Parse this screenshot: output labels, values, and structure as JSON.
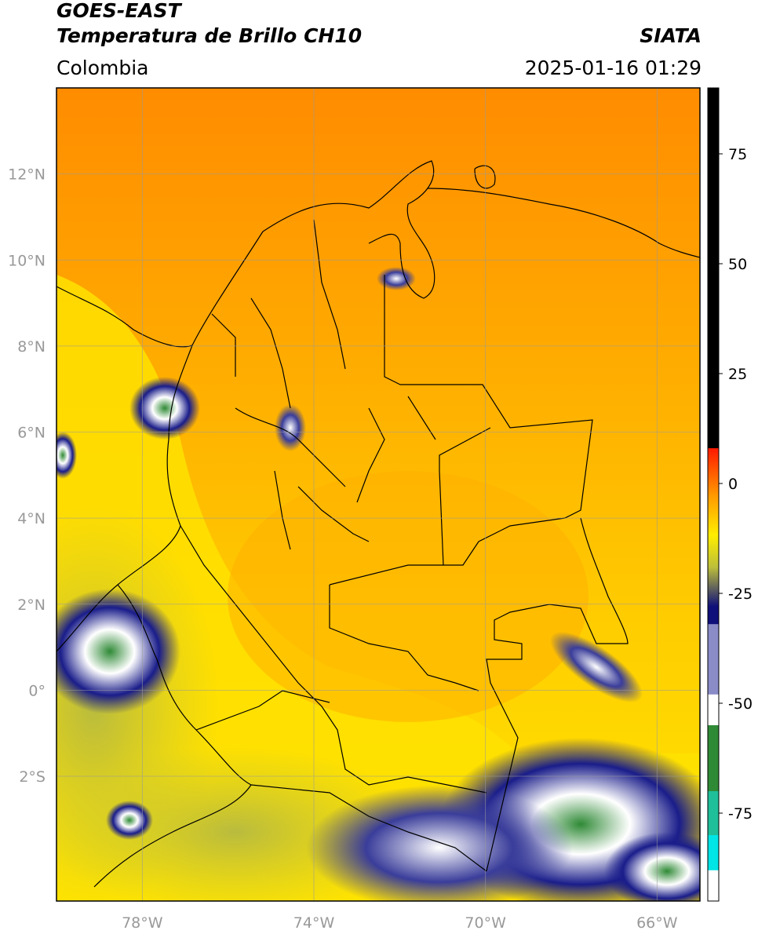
{
  "header": {
    "satellite": "GOES-EAST",
    "product": "Temperatura de Brillo CH10",
    "agency": "SIATA",
    "region": "Colombia",
    "datetime": "2025-01-16 01:29"
  },
  "map": {
    "lon_range": [
      -80,
      -65
    ],
    "lat_range": [
      -4.9,
      14
    ],
    "lat_ticks": [
      {
        "value": 12,
        "label": "12°N"
      },
      {
        "value": 10,
        "label": "10°N"
      },
      {
        "value": 8,
        "label": "8°N"
      },
      {
        "value": 6,
        "label": "6°N"
      },
      {
        "value": 4,
        "label": "4°N"
      },
      {
        "value": 2,
        "label": "2°N"
      },
      {
        "value": 0,
        "label": "0°"
      },
      {
        "value": -2,
        "label": "2°S"
      }
    ],
    "lon_ticks": [
      {
        "value": -78,
        "label": "78°W"
      },
      {
        "value": -74,
        "label": "74°W"
      },
      {
        "value": -70,
        "label": "70°W"
      },
      {
        "value": -66,
        "label": "66°W"
      }
    ],
    "gridlines": true
  },
  "colorbar": {
    "range": [
      -95,
      90
    ],
    "ticks": [
      {
        "value": 75,
        "label": "75"
      },
      {
        "value": 50,
        "label": "50"
      },
      {
        "value": 25,
        "label": "25"
      },
      {
        "value": 0,
        "label": "0"
      },
      {
        "value": -25,
        "label": "-25"
      },
      {
        "value": -50,
        "label": "-50"
      },
      {
        "value": -75,
        "label": "-75"
      }
    ],
    "colors": {
      "black": "#000000",
      "red": "#ff1a00",
      "orange": "#ff9a00",
      "yellow": "#ffee00",
      "olive": "#bdbf3a",
      "navy": "#0f107a",
      "white": "#ffffff",
      "green": "#2f8a36",
      "teal": "#1fbf9a",
      "cyan": "#00e5e5"
    }
  }
}
